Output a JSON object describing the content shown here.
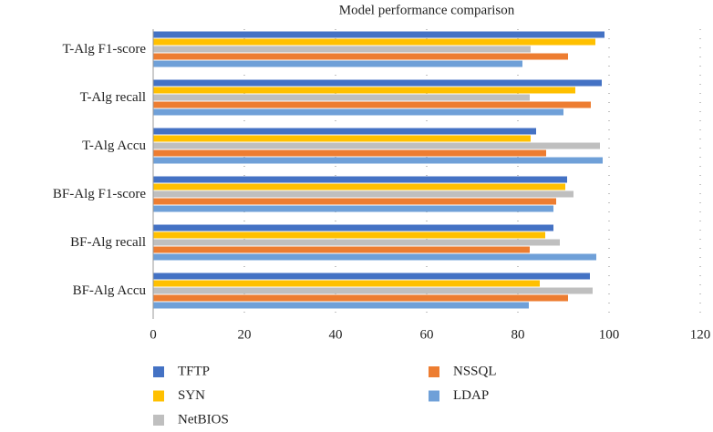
{
  "chart_data": {
    "type": "barh",
    "title": "Model performance comparison",
    "categories": [
      "T-Alg F1-score",
      "T-Alg recall",
      "T-Alg Accu",
      "BF-Alg F1-score",
      "BF-Alg recall",
      "BF-Alg Accu"
    ],
    "series": [
      {
        "name": "TFTP",
        "color": "#4472c4",
        "values": [
          99,
          98.4,
          84,
          90.8,
          87.8,
          95.8
        ]
      },
      {
        "name": "SYN",
        "color": "#ffc000",
        "values": [
          97,
          92.6,
          82.8,
          90.4,
          86,
          84.8
        ]
      },
      {
        "name": "NetBIOS",
        "color": "#bfbfbf",
        "values": [
          82.8,
          82.6,
          98,
          92.2,
          89.2,
          96.4
        ]
      },
      {
        "name": "NSSQL",
        "color": "#ed7d31",
        "values": [
          91,
          96,
          86.2,
          88.4,
          82.6,
          91
        ]
      },
      {
        "name": "LDAP",
        "color": "#6fa0d8",
        "values": [
          81,
          90,
          98.6,
          87.8,
          97.2,
          82.4
        ]
      }
    ],
    "xlim": [
      0,
      120
    ],
    "xticks": [
      0,
      20,
      40,
      60,
      80,
      100,
      120
    ],
    "grid": true,
    "legend": "bottom"
  }
}
